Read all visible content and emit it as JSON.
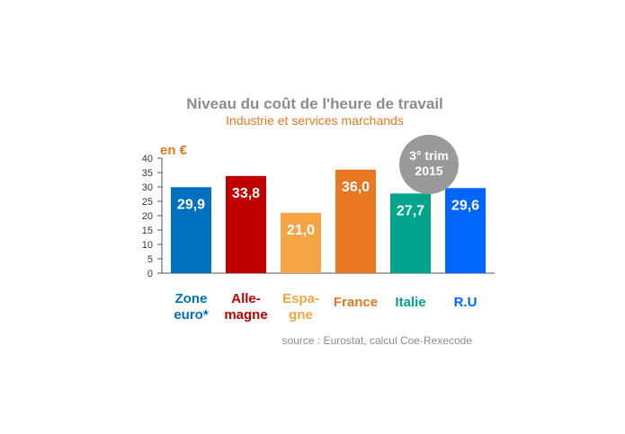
{
  "chart_data": {
    "type": "bar",
    "title": "Niveau du coût de l'heure de travail",
    "subtitle": "Industrie et services marchands",
    "unit_label": "en €",
    "ylim": [
      0,
      40
    ],
    "yticks": [
      0,
      5,
      10,
      15,
      20,
      25,
      30,
      35,
      40
    ],
    "grid": false,
    "categories": [
      {
        "lines": [
          "Zone",
          "euro*"
        ],
        "value": 29.9,
        "value_label": "29,9",
        "color": "#0070c0"
      },
      {
        "lines": [
          "Alle-",
          "magne"
        ],
        "value": 33.8,
        "value_label": "33,8",
        "color": "#c00000"
      },
      {
        "lines": [
          "Espa-",
          "gne"
        ],
        "value": 21.0,
        "value_label": "21,0",
        "color": "#f4a444"
      },
      {
        "lines": [
          "France"
        ],
        "value": 36.0,
        "value_label": "36,0",
        "color": "#e87722"
      },
      {
        "lines": [
          "Italie"
        ],
        "value": 27.7,
        "value_label": "27,7",
        "color": "#00a38c"
      },
      {
        "lines": [
          "R.U"
        ],
        "value": 29.6,
        "value_label": "29,6",
        "color": "#0066ff"
      }
    ],
    "badge": {
      "lines": [
        "3° trim",
        "2015"
      ],
      "color": "#999999"
    },
    "source": "source : Eurostat, calcul Coe-Rexecode",
    "colors": {
      "title": "#8c8c8c",
      "subtitle": "#e87722",
      "unit": "#e87722",
      "axis": "#555555"
    }
  }
}
